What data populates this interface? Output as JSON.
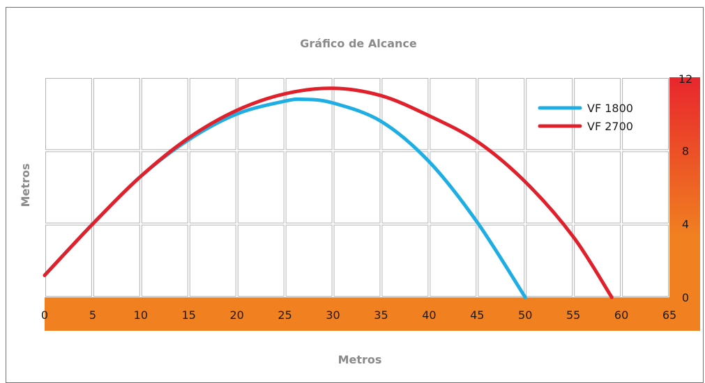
{
  "chart_data": {
    "type": "line",
    "title": "Gráfico de Alcance",
    "xlabel": "Metros",
    "ylabel": "Metros",
    "xlim": [
      0,
      65
    ],
    "ylim": [
      0,
      12
    ],
    "x_ticks": [
      "0",
      "5",
      "10",
      "15",
      "20",
      "25",
      "30",
      "35",
      "40",
      "45",
      "50",
      "55",
      "60",
      "65"
    ],
    "y_ticks": [
      "0",
      "4",
      "8",
      "12"
    ],
    "grid": true,
    "legend_position": "top-right",
    "series": [
      {
        "name": "VF 1800",
        "color": "#1EAEE3",
        "points": [
          [
            0,
            1.2
          ],
          [
            5,
            4.0
          ],
          [
            10,
            6.6
          ],
          [
            15,
            8.6
          ],
          [
            20,
            10.0
          ],
          [
            25,
            10.7
          ],
          [
            27,
            10.8
          ],
          [
            30,
            10.6
          ],
          [
            35,
            9.6
          ],
          [
            40,
            7.4
          ],
          [
            45,
            4.1
          ],
          [
            50,
            0
          ]
        ]
      },
      {
        "name": "VF 2700",
        "color": "#E0202A",
        "points": [
          [
            0,
            1.2
          ],
          [
            5,
            4.0
          ],
          [
            10,
            6.6
          ],
          [
            15,
            8.7
          ],
          [
            20,
            10.2
          ],
          [
            25,
            11.1
          ],
          [
            30,
            11.4
          ],
          [
            35,
            11.0
          ],
          [
            40,
            9.9
          ],
          [
            45,
            8.5
          ],
          [
            50,
            6.3
          ],
          [
            55,
            3.3
          ],
          [
            59,
            0
          ]
        ]
      }
    ]
  },
  "colors": {
    "axis_band_top": "#E8262D",
    "axis_band_bottom": "#F08020",
    "grid_line": "#b3b3b3",
    "title_text": "#8a8a8a"
  }
}
